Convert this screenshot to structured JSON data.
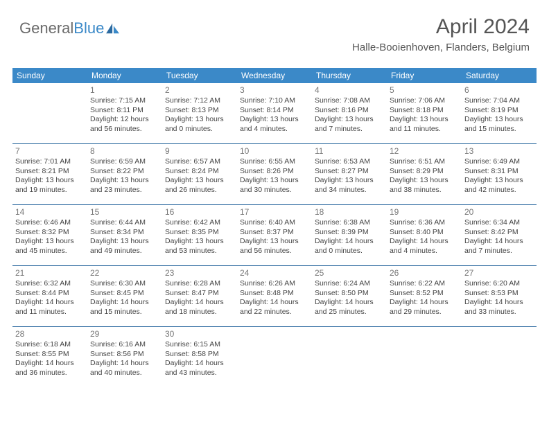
{
  "logo": {
    "text1": "General",
    "text2": "Blue"
  },
  "header": {
    "month_year": "April 2024",
    "location": "Halle-Booienhoven, Flanders, Belgium"
  },
  "colors": {
    "header_bg": "#3b89c8",
    "header_text": "#ffffff",
    "sep_line": "#2c6aa0",
    "page_bg": "#ffffff",
    "text": "#444444",
    "logo_gray": "#6b6b6b",
    "logo_blue": "#3b89c8",
    "title_color": "#555555"
  },
  "typography": {
    "month_year_fontsize": 30,
    "location_fontsize": 15,
    "day_header_fontsize": 12,
    "cell_fontsize": 10.5,
    "daynum_fontsize": 12
  },
  "day_headers": [
    "Sunday",
    "Monday",
    "Tuesday",
    "Wednesday",
    "Thursday",
    "Friday",
    "Saturday"
  ],
  "weeks": [
    [
      {
        "n": "",
        "sr": "",
        "ss": "",
        "d1": "",
        "d2": ""
      },
      {
        "n": "1",
        "sr": "Sunrise: 7:15 AM",
        "ss": "Sunset: 8:11 PM",
        "d1": "Daylight: 12 hours",
        "d2": "and 56 minutes."
      },
      {
        "n": "2",
        "sr": "Sunrise: 7:12 AM",
        "ss": "Sunset: 8:13 PM",
        "d1": "Daylight: 13 hours",
        "d2": "and 0 minutes."
      },
      {
        "n": "3",
        "sr": "Sunrise: 7:10 AM",
        "ss": "Sunset: 8:14 PM",
        "d1": "Daylight: 13 hours",
        "d2": "and 4 minutes."
      },
      {
        "n": "4",
        "sr": "Sunrise: 7:08 AM",
        "ss": "Sunset: 8:16 PM",
        "d1": "Daylight: 13 hours",
        "d2": "and 7 minutes."
      },
      {
        "n": "5",
        "sr": "Sunrise: 7:06 AM",
        "ss": "Sunset: 8:18 PM",
        "d1": "Daylight: 13 hours",
        "d2": "and 11 minutes."
      },
      {
        "n": "6",
        "sr": "Sunrise: 7:04 AM",
        "ss": "Sunset: 8:19 PM",
        "d1": "Daylight: 13 hours",
        "d2": "and 15 minutes."
      }
    ],
    [
      {
        "n": "7",
        "sr": "Sunrise: 7:01 AM",
        "ss": "Sunset: 8:21 PM",
        "d1": "Daylight: 13 hours",
        "d2": "and 19 minutes."
      },
      {
        "n": "8",
        "sr": "Sunrise: 6:59 AM",
        "ss": "Sunset: 8:22 PM",
        "d1": "Daylight: 13 hours",
        "d2": "and 23 minutes."
      },
      {
        "n": "9",
        "sr": "Sunrise: 6:57 AM",
        "ss": "Sunset: 8:24 PM",
        "d1": "Daylight: 13 hours",
        "d2": "and 26 minutes."
      },
      {
        "n": "10",
        "sr": "Sunrise: 6:55 AM",
        "ss": "Sunset: 8:26 PM",
        "d1": "Daylight: 13 hours",
        "d2": "and 30 minutes."
      },
      {
        "n": "11",
        "sr": "Sunrise: 6:53 AM",
        "ss": "Sunset: 8:27 PM",
        "d1": "Daylight: 13 hours",
        "d2": "and 34 minutes."
      },
      {
        "n": "12",
        "sr": "Sunrise: 6:51 AM",
        "ss": "Sunset: 8:29 PM",
        "d1": "Daylight: 13 hours",
        "d2": "and 38 minutes."
      },
      {
        "n": "13",
        "sr": "Sunrise: 6:49 AM",
        "ss": "Sunset: 8:31 PM",
        "d1": "Daylight: 13 hours",
        "d2": "and 42 minutes."
      }
    ],
    [
      {
        "n": "14",
        "sr": "Sunrise: 6:46 AM",
        "ss": "Sunset: 8:32 PM",
        "d1": "Daylight: 13 hours",
        "d2": "and 45 minutes."
      },
      {
        "n": "15",
        "sr": "Sunrise: 6:44 AM",
        "ss": "Sunset: 8:34 PM",
        "d1": "Daylight: 13 hours",
        "d2": "and 49 minutes."
      },
      {
        "n": "16",
        "sr": "Sunrise: 6:42 AM",
        "ss": "Sunset: 8:35 PM",
        "d1": "Daylight: 13 hours",
        "d2": "and 53 minutes."
      },
      {
        "n": "17",
        "sr": "Sunrise: 6:40 AM",
        "ss": "Sunset: 8:37 PM",
        "d1": "Daylight: 13 hours",
        "d2": "and 56 minutes."
      },
      {
        "n": "18",
        "sr": "Sunrise: 6:38 AM",
        "ss": "Sunset: 8:39 PM",
        "d1": "Daylight: 14 hours",
        "d2": "and 0 minutes."
      },
      {
        "n": "19",
        "sr": "Sunrise: 6:36 AM",
        "ss": "Sunset: 8:40 PM",
        "d1": "Daylight: 14 hours",
        "d2": "and 4 minutes."
      },
      {
        "n": "20",
        "sr": "Sunrise: 6:34 AM",
        "ss": "Sunset: 8:42 PM",
        "d1": "Daylight: 14 hours",
        "d2": "and 7 minutes."
      }
    ],
    [
      {
        "n": "21",
        "sr": "Sunrise: 6:32 AM",
        "ss": "Sunset: 8:44 PM",
        "d1": "Daylight: 14 hours",
        "d2": "and 11 minutes."
      },
      {
        "n": "22",
        "sr": "Sunrise: 6:30 AM",
        "ss": "Sunset: 8:45 PM",
        "d1": "Daylight: 14 hours",
        "d2": "and 15 minutes."
      },
      {
        "n": "23",
        "sr": "Sunrise: 6:28 AM",
        "ss": "Sunset: 8:47 PM",
        "d1": "Daylight: 14 hours",
        "d2": "and 18 minutes."
      },
      {
        "n": "24",
        "sr": "Sunrise: 6:26 AM",
        "ss": "Sunset: 8:48 PM",
        "d1": "Daylight: 14 hours",
        "d2": "and 22 minutes."
      },
      {
        "n": "25",
        "sr": "Sunrise: 6:24 AM",
        "ss": "Sunset: 8:50 PM",
        "d1": "Daylight: 14 hours",
        "d2": "and 25 minutes."
      },
      {
        "n": "26",
        "sr": "Sunrise: 6:22 AM",
        "ss": "Sunset: 8:52 PM",
        "d1": "Daylight: 14 hours",
        "d2": "and 29 minutes."
      },
      {
        "n": "27",
        "sr": "Sunrise: 6:20 AM",
        "ss": "Sunset: 8:53 PM",
        "d1": "Daylight: 14 hours",
        "d2": "and 33 minutes."
      }
    ],
    [
      {
        "n": "28",
        "sr": "Sunrise: 6:18 AM",
        "ss": "Sunset: 8:55 PM",
        "d1": "Daylight: 14 hours",
        "d2": "and 36 minutes."
      },
      {
        "n": "29",
        "sr": "Sunrise: 6:16 AM",
        "ss": "Sunset: 8:56 PM",
        "d1": "Daylight: 14 hours",
        "d2": "and 40 minutes."
      },
      {
        "n": "30",
        "sr": "Sunrise: 6:15 AM",
        "ss": "Sunset: 8:58 PM",
        "d1": "Daylight: 14 hours",
        "d2": "and 43 minutes."
      },
      {
        "n": "",
        "sr": "",
        "ss": "",
        "d1": "",
        "d2": ""
      },
      {
        "n": "",
        "sr": "",
        "ss": "",
        "d1": "",
        "d2": ""
      },
      {
        "n": "",
        "sr": "",
        "ss": "",
        "d1": "",
        "d2": ""
      },
      {
        "n": "",
        "sr": "",
        "ss": "",
        "d1": "",
        "d2": ""
      }
    ]
  ]
}
